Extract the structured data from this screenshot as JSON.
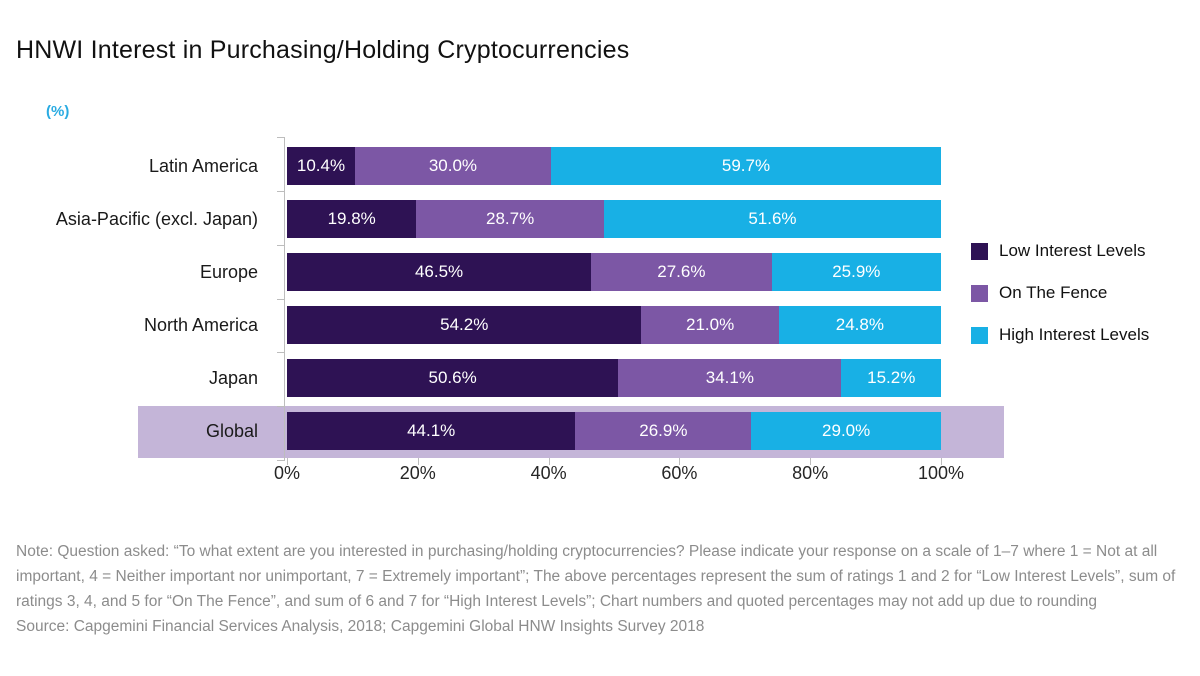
{
  "title": "HNWI Interest in Purchasing/Holding Cryptocurrencies",
  "unit_label": "(%)",
  "colors": {
    "low_interest": "#2E1254",
    "on_the_fence": "#7C57A5",
    "high_interest": "#18B0E5",
    "highlight_band": "#C4B5D8",
    "axis": "#BDBDBD",
    "unit_label": "#29ABE2",
    "note_text": "#8C8C8C"
  },
  "chart_data": {
    "type": "bar",
    "orientation": "horizontal",
    "stacked": true,
    "title": "HNWI Interest in Purchasing/Holding Cryptocurrencies",
    "ylabel": "(%)",
    "categories": [
      "Latin America",
      "Asia-Pacific (excl. Japan)",
      "Europe",
      "North America",
      "Japan",
      "Global"
    ],
    "series": [
      {
        "name": "Low Interest Levels",
        "color": "#2E1254",
        "values": [
          10.4,
          19.8,
          46.5,
          54.2,
          50.6,
          44.1
        ]
      },
      {
        "name": "On The Fence",
        "color": "#7C57A5",
        "values": [
          30.0,
          28.7,
          27.6,
          21.0,
          34.1,
          26.9
        ]
      },
      {
        "name": "High Interest Levels",
        "color": "#18B0E5",
        "values": [
          59.7,
          51.6,
          25.9,
          24.8,
          15.2,
          29.0
        ]
      }
    ],
    "x_axis": {
      "tick_labels": [
        "0%",
        "20%",
        "40%",
        "60%",
        "80%",
        "100%"
      ],
      "range": [
        0,
        100
      ],
      "grid": false
    },
    "highlight_category": "Global",
    "legend_position": "right",
    "value_label_format": "one-decimal-percent"
  },
  "notes": {
    "note": "Note: Question asked: “To what extent are you interested in purchasing/holding cryptocurrencies? Please indicate your response on a scale of 1–7 where 1 = Not at all important, 4 = Neither important nor unimportant, 7 = Extremely important”; The above percentages represent the sum of ratings 1 and 2 for “Low Interest Levels”, sum of ratings 3, 4, and 5 for “On The Fence”, and sum of 6 and 7 for “High Interest Levels”; Chart numbers and quoted percentages may not add up due to rounding",
    "source": "Source: Capgemini Financial Services Analysis, 2018; Capgemini Global HNW Insights Survey 2018"
  }
}
